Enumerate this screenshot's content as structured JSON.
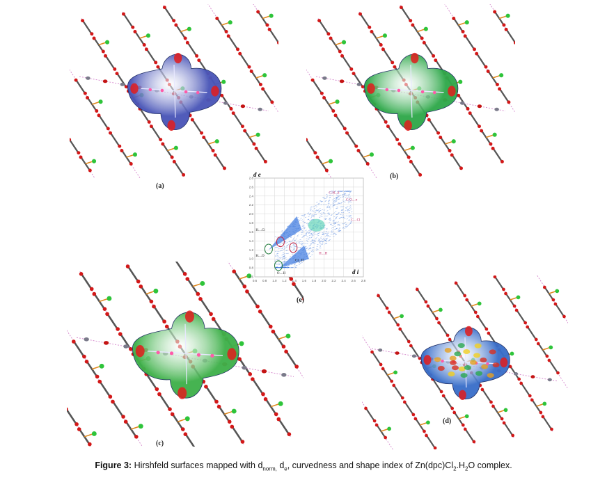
{
  "panels": [
    {
      "label": "(a)",
      "surface": "dnorm",
      "surface_color": "#4a56b8"
    },
    {
      "label": "(b)",
      "surface": "de",
      "surface_color": "#2fa84a"
    },
    {
      "label": "(c)",
      "surface": "curvedness",
      "surface_color": "#3fb04a"
    },
    {
      "label": "(d)",
      "surface": "shape-index",
      "surface_color": "#3a6fc9"
    }
  ],
  "chart_data": {
    "type": "scatter",
    "label": "(e)",
    "ylabel": "d e",
    "xlabel": "d i",
    "xlim": [
      0.6,
      2.8
    ],
    "ylim": [
      0.6,
      2.8
    ],
    "xticks": [
      "0.6",
      "0.8",
      "1.0",
      "1.2",
      "1.4",
      "1.6",
      "1.8",
      "2.0",
      "2.2",
      "2.4",
      "2.6",
      "2.8"
    ],
    "yticks": [
      "0.6",
      "0.8",
      "1.0",
      "1.2",
      "1.4",
      "1.6",
      "1.8",
      "2.0",
      "2.2",
      "2.4",
      "2.6",
      "2.8"
    ],
    "annotations": [
      {
        "text": "C-H...S",
        "x": 2.1,
        "y": 2.45,
        "color": "#c0306a"
      },
      {
        "text": "C-O....π",
        "x": 2.45,
        "y": 2.3,
        "color": "#c0306a"
      },
      {
        "text": "C....Cl",
        "x": 2.55,
        "y": 1.85,
        "color": "#c0306a"
      },
      {
        "text": "H....Cl",
        "x": 0.62,
        "y": 1.62,
        "color": "#222222"
      },
      {
        "text": "H....O",
        "x": 0.62,
        "y": 1.05,
        "color": "#222222"
      },
      {
        "text": "H....H",
        "x": 1.9,
        "y": 1.1,
        "color": "#c0306a"
      },
      {
        "text": "Cl...H",
        "x": 1.42,
        "y": 0.95,
        "color": "#222222"
      },
      {
        "text": "O....H",
        "x": 1.05,
        "y": 0.66,
        "color": "#222222"
      }
    ],
    "circles": [
      {
        "x": 0.88,
        "y": 1.22,
        "color": "#1f7a3a"
      },
      {
        "x": 1.12,
        "y": 1.38,
        "color": "#c02040"
      },
      {
        "x": 1.38,
        "y": 1.25,
        "color": "#c02040"
      },
      {
        "x": 1.08,
        "y": 0.85,
        "color": "#1f7a3a"
      }
    ]
  },
  "caption": {
    "prefix": "Figure 3:",
    "text1": " Hirshfeld surfaces mapped with d",
    "sub1": "norm,",
    "text2": " d",
    "sub2": "e",
    "text3": ", curvedness and shape index of Zn(dpc)Cl",
    "sub3": "2",
    "text4": ".H",
    "sub4": "2",
    "text5": "O complex."
  }
}
